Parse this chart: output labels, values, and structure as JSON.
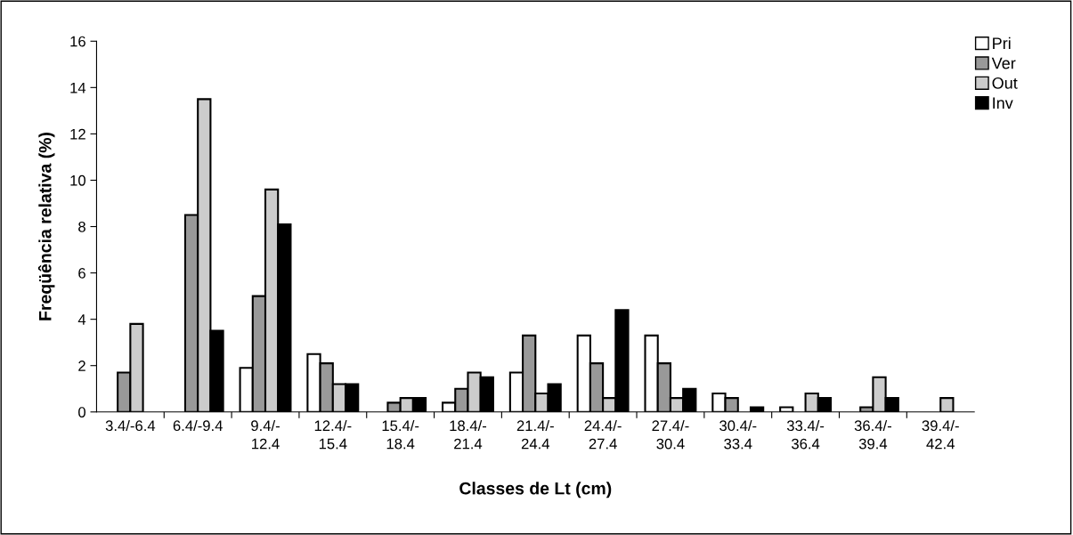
{
  "chart_data": {
    "type": "bar",
    "xlabel": "Classes de Lt (cm)",
    "ylabel": "Freqüência relativa (%)",
    "categories": [
      "3.4/-6.4",
      "6.4/-9.4",
      "9.4/-12.4",
      "12.4/-15.4",
      "15.4/-18.4",
      "18.4/-21.4",
      "21.4/-24.4",
      "24.4/-27.4",
      "27.4/-30.4",
      "30.4/-33.4",
      "33.4/-36.4",
      "36.4/-39.4",
      "39.4/-42.4"
    ],
    "series": [
      {
        "name": "Pri",
        "color": "#ffffff",
        "values": [
          null,
          null,
          1.9,
          2.5,
          null,
          0.4,
          1.7,
          3.3,
          3.3,
          0.8,
          0.2,
          null,
          null
        ]
      },
      {
        "name": "Ver",
        "color": "#999999",
        "values": [
          1.7,
          8.5,
          5.0,
          2.1,
          0.4,
          1.0,
          3.3,
          2.1,
          2.1,
          0.6,
          null,
          0.2,
          null
        ]
      },
      {
        "name": "Out",
        "color": "#cccccc",
        "values": [
          3.8,
          13.5,
          9.6,
          1.2,
          0.6,
          1.7,
          0.8,
          0.6,
          0.6,
          null,
          0.8,
          1.5,
          0.6
        ]
      },
      {
        "name": "Inv",
        "color": "#000000",
        "values": [
          null,
          3.5,
          8.1,
          1.2,
          0.6,
          1.5,
          1.2,
          4.4,
          1.0,
          0.2,
          0.6,
          0.6,
          null
        ]
      }
    ],
    "ylim": [
      0,
      16
    ],
    "yticks": [
      0,
      2,
      4,
      6,
      8,
      10,
      12,
      14,
      16
    ],
    "grid": false,
    "legend": "top right"
  }
}
